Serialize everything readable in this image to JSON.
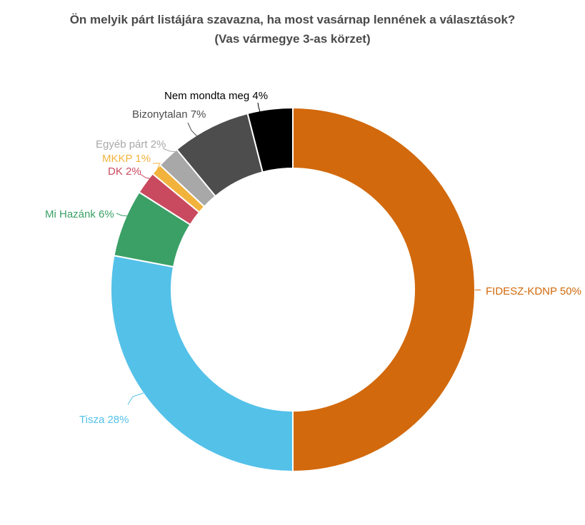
{
  "title": {
    "line1": "Ön melyik párt listájára szavazna, ha most vasárnap lennének a választások?",
    "line2": "(Vas vármegye 3-as körzet)",
    "color": "#4a4a4a"
  },
  "chart_data": {
    "type": "pie",
    "subtype": "donut",
    "title": "Ön melyik párt listájára szavazna, ha most vasárnap lennének a választások? (Vas vármegye 3-as körzet)",
    "unit": "%",
    "start_angle_deg": 0,
    "direction": "clockwise",
    "legend": "none",
    "labels_outside": true,
    "label_format": "{name} {value}%",
    "slices": [
      {
        "name": "FIDESZ-KDNP",
        "value": 50,
        "color": "#d2690c"
      },
      {
        "name": "Tisza",
        "value": 28,
        "color": "#54c1e9"
      },
      {
        "name": "Mi Hazánk",
        "value": 6,
        "color": "#3aa066"
      },
      {
        "name": "DK",
        "value": 2,
        "color": "#c94a5e"
      },
      {
        "name": "MKKP",
        "value": 1,
        "color": "#f2b33d"
      },
      {
        "name": "Egyéb párt",
        "value": 2,
        "color": "#a8a8a8"
      },
      {
        "name": "Bizonytalan",
        "value": 7,
        "color": "#4d4d4d"
      },
      {
        "name": "Nem mondta meg",
        "value": 4,
        "color": "#000000"
      }
    ]
  }
}
